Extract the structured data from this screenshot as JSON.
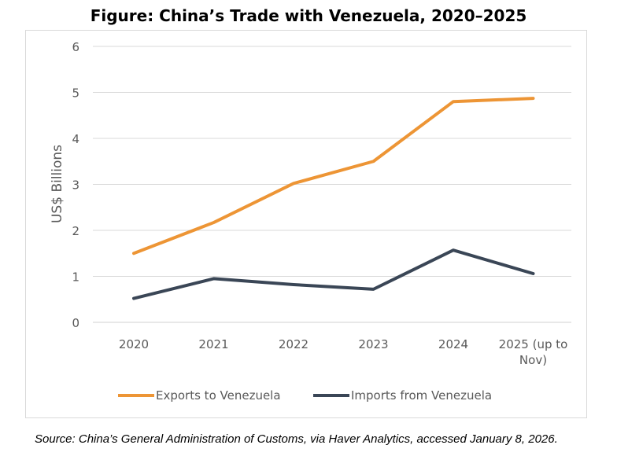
{
  "chart_data": {
    "type": "line",
    "title": "Figure: China’s Trade with Venezuela, 2020–2025",
    "xlabel": "",
    "ylabel": "US$ Billions",
    "ylim": [
      0,
      6
    ],
    "yticks": [
      0,
      1,
      2,
      3,
      4,
      5,
      6
    ],
    "grid": true,
    "legend_position": "bottom",
    "categories": [
      "2020",
      "2021",
      "2022",
      "2023",
      "2024",
      "2025 (up to Nov)"
    ],
    "category_lines": [
      [
        "2020"
      ],
      [
        "2021"
      ],
      [
        "2022"
      ],
      [
        "2023"
      ],
      [
        "2024"
      ],
      [
        "2025 (up to",
        "Nov)"
      ]
    ],
    "series": [
      {
        "name": "Exports to Venezuela",
        "color": "#ED9535",
        "values": [
          1.5,
          2.17,
          3.02,
          3.5,
          4.8,
          4.87
        ]
      },
      {
        "name": "Imports from Venezuela",
        "color": "#3A4656",
        "values": [
          0.52,
          0.95,
          0.82,
          0.72,
          1.57,
          1.06
        ]
      }
    ]
  },
  "source": "Source: China’s General Administration of Customs, via Haver Analytics, accessed January 8, 2026."
}
